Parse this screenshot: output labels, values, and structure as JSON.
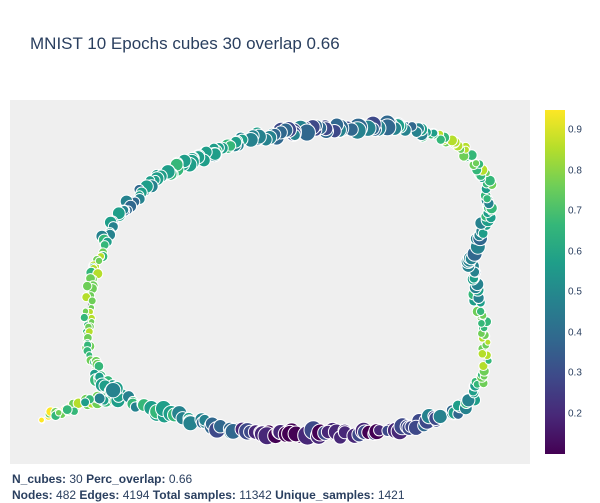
{
  "title": "MNIST 10 Epochs cubes 30 overlap 0.66",
  "colorscale": [
    "#440154",
    "#482878",
    "#3e4989",
    "#31688e",
    "#26828e",
    "#1f9e89",
    "#35b779",
    "#6ece58",
    "#b5de2b",
    "#fde725"
  ],
  "chart_data": {
    "type": "scatter",
    "title": "MNIST 10 Epochs cubes 30 overlap 0.66",
    "colorbar": {
      "range": [
        0.1,
        0.95
      ],
      "ticks": [
        "0.2",
        "0.3",
        "0.4",
        "0.5",
        "0.6",
        "0.7",
        "0.8",
        "0.9"
      ]
    },
    "grid": false,
    "nodes": 482,
    "edges": 4194,
    "edge_color": "#aaaaaa"
  },
  "footer": {
    "n_cubes_label": "N_cubes:",
    "n_cubes": "30",
    "perc_overlap_label": "Perc_overlap:",
    "perc_overlap": "0.66",
    "nodes_label": "Nodes:",
    "nodes": "482",
    "edges_label": "Edges:",
    "edges": "4194",
    "total_samples_label": "Total samples:",
    "total_samples": "11342",
    "unique_samples_label": "Unique_samples:",
    "unique_samples": "1421"
  }
}
